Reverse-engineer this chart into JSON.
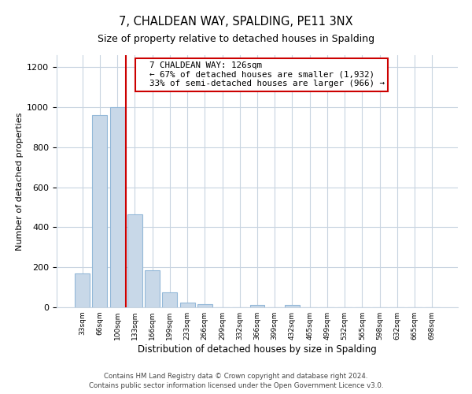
{
  "title": "7, CHALDEAN WAY, SPALDING, PE11 3NX",
  "subtitle": "Size of property relative to detached houses in Spalding",
  "xlabel": "Distribution of detached houses by size in Spalding",
  "ylabel": "Number of detached properties",
  "bar_labels": [
    "33sqm",
    "66sqm",
    "100sqm",
    "133sqm",
    "166sqm",
    "199sqm",
    "233sqm",
    "266sqm",
    "299sqm",
    "332sqm",
    "366sqm",
    "399sqm",
    "432sqm",
    "465sqm",
    "499sqm",
    "532sqm",
    "565sqm",
    "598sqm",
    "632sqm",
    "665sqm",
    "698sqm"
  ],
  "bar_values": [
    170,
    960,
    1000,
    465,
    185,
    75,
    25,
    15,
    0,
    0,
    10,
    0,
    10,
    0,
    0,
    0,
    0,
    0,
    0,
    0,
    0
  ],
  "bar_color": "#c8d8e8",
  "bar_edge_color": "#93b8d8",
  "vline_color": "#cc0000",
  "ylim": [
    0,
    1260
  ],
  "yticks": [
    0,
    200,
    400,
    600,
    800,
    1000,
    1200
  ],
  "annotation_title": "7 CHALDEAN WAY: 126sqm",
  "annotation_line1": "← 67% of detached houses are smaller (1,932)",
  "annotation_line2": "33% of semi-detached houses are larger (966) →",
  "footer_line1": "Contains HM Land Registry data © Crown copyright and database right 2024.",
  "footer_line2": "Contains public sector information licensed under the Open Government Licence v3.0.",
  "bg_color": "#ffffff",
  "grid_color": "#c8d4e0"
}
